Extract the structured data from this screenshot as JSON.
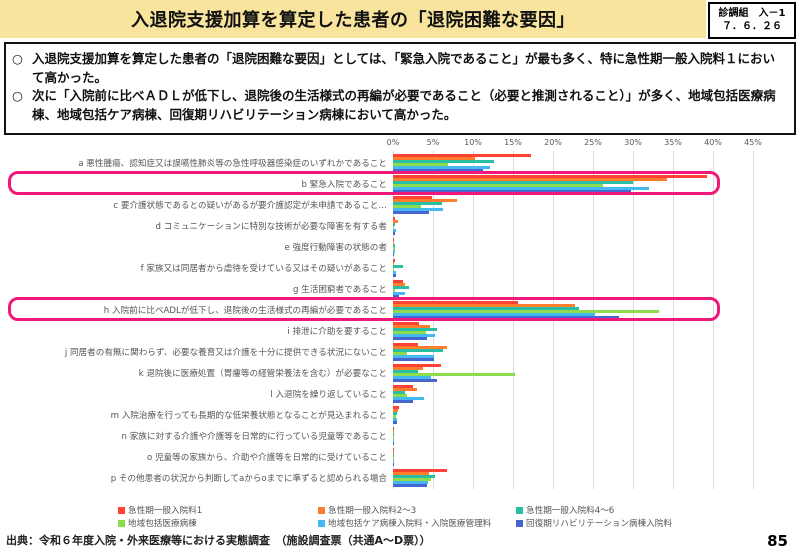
{
  "header": {
    "title": "入退院支援加算を算定した患者の「退院困難な要因」",
    "badge_line1": "診調組　入－1",
    "badge_line2": "７．６．２６"
  },
  "summary": {
    "marker": "○",
    "bullet1": "入退院支援加算を算定した患者の「退院困難な要因」としては、「緊急入院であること」が最も多く、特に急性期一般入院料１において高かった。",
    "bullet2": "次に「入院前に比べＡＤＬが低下し、退院後の生活様式の再編が必要であること（必要と推測されること）」が多く、地域包括医療病棟、地域包括ケア病棟、回復期リハビリテーション病棟において高かった。"
  },
  "chart_data": {
    "type": "bar",
    "orientation": "horizontal",
    "xlim": [
      0,
      45
    ],
    "x_ticks": [
      "0%",
      "5%",
      "10%",
      "15%",
      "20%",
      "25%",
      "30%",
      "35%",
      "40%",
      "45%"
    ],
    "grid": true,
    "legend_position": "bottom",
    "highlight_color": "#F01878",
    "highlighted_category_indices": [
      1,
      7
    ],
    "categories": [
      "a 悪性腫瘍、認知症又は誤嚥性肺炎等の急性呼吸器感染症のいずれかであること",
      "b 緊急入院であること",
      "c 要介護状態であるとの疑いがあるが要介護認定が未申請であること…",
      "d コミュニケーションに特別な技術が必要な障害を有する者",
      "e 強度行動障害の状態の者",
      "f 家族又は同居者から虐待を受けている又はその疑いがあること",
      "g 生活困窮者であること",
      "h 入院前に比べADLが低下し、退院後の生活様式の再編が必要であること",
      "i 排泄に介助を要すること",
      "j 同居者の有無に関わらず、必要な養育又は介護を十分に提供できる状況にないこと",
      "k 退院後に医療処置（胃瘻等の経管栄養法を含む）が必要なこと",
      "l 入退院を繰り返していること",
      "m 入院治療を行っても長期的な低栄養状態となることが見込まれること",
      "n 家族に対する介護や介護等を日常的に行っている児童等であること",
      "o 児童等の家族から、介助や介護等を日常的に受けていること",
      "p その他患者の状況から判断してaからoまでに準ずると認められる場合"
    ],
    "series": [
      {
        "name": "急性期一般入院料1",
        "color": "#FF4234",
        "values": [
          17.2,
          39.2,
          4.9,
          0.3,
          0.15,
          0.2,
          1.3,
          15.6,
          3.2,
          3.1,
          6.0,
          2.5,
          0.7,
          0.1,
          0.1,
          6.7
        ]
      },
      {
        "name": "急性期一般入院料2～3",
        "color": "#FF7E2E",
        "values": [
          10.2,
          34.3,
          8.0,
          0.6,
          0.1,
          0.15,
          1.5,
          22.7,
          4.6,
          6.8,
          3.8,
          3.0,
          0.6,
          0.05,
          0.05,
          4.5
        ]
      },
      {
        "name": "急性期一般入院料4～6",
        "color": "#2ABFA3",
        "values": [
          12.6,
          30.0,
          6.1,
          0.2,
          0.3,
          1.2,
          2.0,
          23.3,
          5.5,
          6.2,
          3.1,
          1.5,
          0.5,
          0.05,
          0.05,
          5.2
        ]
      },
      {
        "name": "地域包括医療病棟",
        "color": "#8EDC4E",
        "values": [
          6.9,
          26.3,
          3.5,
          0.15,
          0.3,
          0.1,
          0.3,
          33.2,
          4.1,
          1.8,
          15.3,
          1.8,
          0.4,
          0.05,
          0.05,
          4.7
        ]
      },
      {
        "name": "地域包括ケア病棟入院料・入院医療管理料",
        "color": "#44B8F0",
        "values": [
          12.1,
          32.0,
          6.2,
          0.4,
          0.2,
          0.4,
          1.5,
          25.2,
          5.3,
          5.1,
          4.7,
          3.9,
          0.5,
          0.15,
          0.05,
          4.4
        ]
      },
      {
        "name": "回復期リハビリテーション病棟入院料",
        "color": "#4565D0",
        "values": [
          11.2,
          29.8,
          4.5,
          0.3,
          0.15,
          0.4,
          0.75,
          28.3,
          4.2,
          5.1,
          5.5,
          2.5,
          0.5,
          0.05,
          0.05,
          4.3
        ]
      }
    ]
  },
  "footer": {
    "source": "出典：令和６年度入院・外来医療等における実態調査　（施設調査票（共通A～D票））",
    "page_number": "85"
  }
}
